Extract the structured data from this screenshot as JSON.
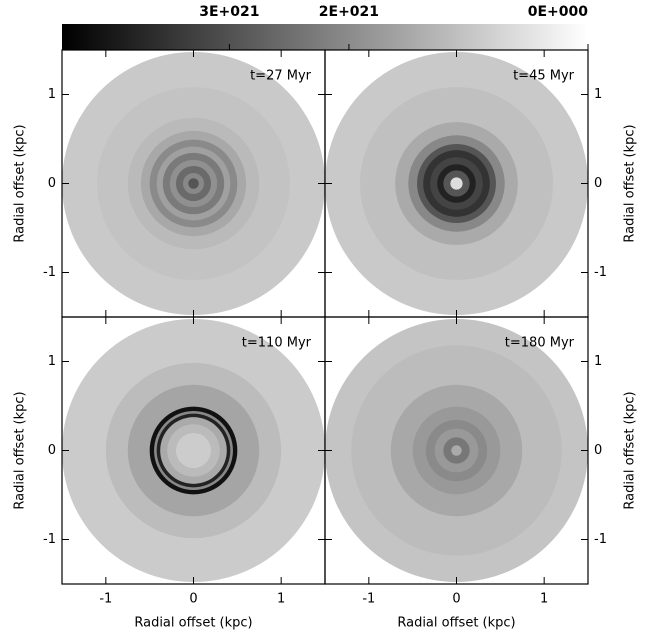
{
  "chart_data": {
    "type": "image-grid",
    "colorbar": {
      "lim": [
        4.4e+21,
        0
      ],
      "ticks": [
        {
          "value": 3e+21,
          "label": "3E+021"
        },
        {
          "value": 2e+21,
          "label": "2E+021"
        },
        {
          "value": 0,
          "label": "0E+000"
        }
      ]
    },
    "panels": [
      {
        "title": "t=27 Myr",
        "ylabel": "Radial offset (kpc)",
        "xlim": [
          -1.5,
          1.5
        ],
        "ylim": [
          -1.5,
          1.5
        ],
        "xticks": [
          -1,
          0,
          1
        ],
        "yticks": [
          -1,
          0,
          1
        ],
        "ytick_side": "left"
      },
      {
        "title": "t=45 Myr",
        "ylabel": "Radial offset (kpc)",
        "xlim": [
          -1.5,
          1.5
        ],
        "ylim": [
          -1.5,
          1.5
        ],
        "xticks": [
          -1,
          0,
          1
        ],
        "yticks": [
          -1,
          0,
          1
        ],
        "ytick_side": "right"
      },
      {
        "title": "t=110 Myr",
        "ylabel": "Radial offset (kpc)",
        "xlabel": "Radial offset (kpc)",
        "xlim": [
          -1.5,
          1.5
        ],
        "ylim": [
          -1.5,
          1.5
        ],
        "xticks": [
          -1,
          0,
          1
        ],
        "yticks": [
          -1,
          0,
          1
        ],
        "ytick_side": "left"
      },
      {
        "title": "t=180 Myr",
        "ylabel": "Radial offset (kpc)",
        "xlabel": "Radial offset (kpc)",
        "xlim": [
          -1.5,
          1.5
        ],
        "ylim": [
          -1.5,
          1.5
        ],
        "xticks": [
          -1,
          0,
          1
        ],
        "yticks": [
          -1,
          0,
          1
        ],
        "ytick_side": "right"
      }
    ]
  }
}
